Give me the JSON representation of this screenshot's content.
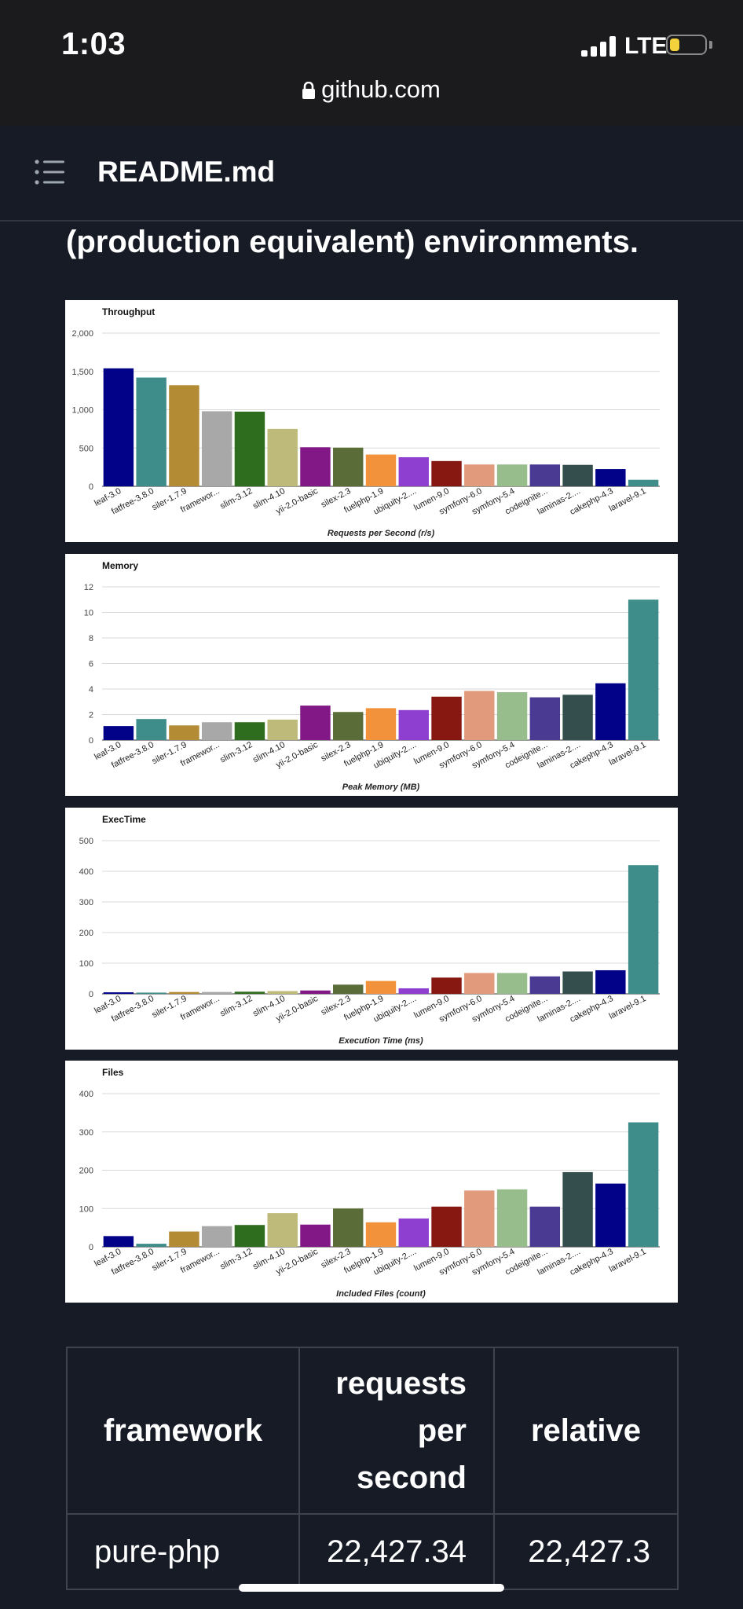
{
  "status_bar": {
    "time": "1:03",
    "network": "LTE",
    "battery_level": 0.28,
    "battery_color": "#f4d23c",
    "url": "github.com"
  },
  "header": {
    "title": "README.md",
    "menu_icon": "list-icon"
  },
  "intro_text": "(production equivalent) environments.",
  "chart_data": [
    {
      "type": "bar",
      "title": "Throughput",
      "xlabel": "Requests per Second (r/s)",
      "ylabel": "",
      "ylim": [
        0,
        2000
      ],
      "yticks": [
        0,
        500,
        1000,
        1500,
        2000
      ],
      "tick_labels": [
        "0",
        "500",
        "1,000",
        "1,500",
        "2,000"
      ],
      "categories": [
        "leaf-3.0",
        "fatfree-3.8.0",
        "siler-1.7.9",
        "framewor...",
        "slim-3.12",
        "slim-4.10",
        "yii-2.0-basic",
        "silex-2.3",
        "fuelphp-1.9",
        "ubiquity-2....",
        "lumen-9.0",
        "symfony-6.0",
        "symfony-5.4",
        "codeignite...",
        "laminas-2....",
        "cakephp-4.3",
        "laravel-9.1"
      ],
      "values": [
        1540,
        1420,
        1320,
        980,
        975,
        750,
        510,
        505,
        415,
        380,
        330,
        285,
        285,
        285,
        280,
        225,
        85
      ]
    },
    {
      "type": "bar",
      "title": "Memory",
      "xlabel": "Peak Memory (MB)",
      "ylabel": "",
      "ylim": [
        0,
        12
      ],
      "yticks": [
        0,
        2,
        4,
        6,
        8,
        10,
        12
      ],
      "tick_labels": [
        "0",
        "2",
        "4",
        "6",
        "8",
        "10",
        "12"
      ],
      "categories": [
        "leaf-3.0",
        "fatfree-3.8.0",
        "siler-1.7.9",
        "framewor...",
        "slim-3.12",
        "slim-4.10",
        "yii-2.0-basic",
        "silex-2.3",
        "fuelphp-1.9",
        "ubiquity-2....",
        "lumen-9.0",
        "symfony-6.0",
        "symfony-5.4",
        "codeignite...",
        "laminas-2....",
        "cakephp-4.3",
        "laravel-9.1"
      ],
      "values": [
        1.1,
        1.65,
        1.15,
        1.4,
        1.4,
        1.6,
        2.7,
        2.2,
        2.5,
        2.35,
        3.4,
        3.85,
        3.75,
        3.35,
        3.55,
        4.45,
        11.0
      ]
    },
    {
      "type": "bar",
      "title": "ExecTime",
      "xlabel": "Execution Time (ms)",
      "ylabel": "",
      "ylim": [
        0,
        500
      ],
      "yticks": [
        0,
        100,
        200,
        300,
        400,
        500
      ],
      "tick_labels": [
        "0",
        "100",
        "200",
        "300",
        "400",
        "500"
      ],
      "categories": [
        "leaf-3.0",
        "fatfree-3.8.0",
        "siler-1.7.9",
        "framewor...",
        "slim-3.12",
        "slim-4.10",
        "yii-2.0-basic",
        "silex-2.3",
        "fuelphp-1.9",
        "ubiquity-2....",
        "lumen-9.0",
        "symfony-6.0",
        "symfony-5.4",
        "codeignite...",
        "laminas-2....",
        "cakephp-4.3",
        "laravel-9.1"
      ],
      "values": [
        5,
        4,
        6,
        6,
        7,
        9,
        11,
        30,
        42,
        18,
        53,
        68,
        68,
        57,
        73,
        77,
        420
      ]
    },
    {
      "type": "bar",
      "title": "Files",
      "xlabel": "Included Files (count)",
      "ylabel": "",
      "ylim": [
        0,
        400
      ],
      "yticks": [
        0,
        100,
        200,
        300,
        400
      ],
      "tick_labels": [
        "0",
        "100",
        "200",
        "300",
        "400"
      ],
      "categories": [
        "leaf-3.0",
        "fatfree-3.8.0",
        "siler-1.7.9",
        "framewor...",
        "slim-3.12",
        "slim-4.10",
        "yii-2.0-basic",
        "silex-2.3",
        "fuelphp-1.9",
        "ubiquity-2....",
        "lumen-9.0",
        "symfony-6.0",
        "symfony-5.4",
        "codeignite...",
        "laminas-2....",
        "cakephp-4.3",
        "laravel-9.1"
      ],
      "values": [
        28,
        8,
        40,
        54,
        57,
        88,
        58,
        100,
        64,
        74,
        105,
        147,
        150,
        105,
        195,
        165,
        325
      ]
    }
  ],
  "bar_colors": [
    "#020289",
    "#3e8d8b",
    "#b48b35",
    "#a8a8a8",
    "#2e6d1d",
    "#bebb7a",
    "#821886",
    "#5a6d39",
    "#f2933b",
    "#8f3fd0",
    "#861711",
    "#e19a7c",
    "#97bd8c",
    "#4b3a91",
    "#344e4d",
    "#020289",
    "#3e8d8b"
  ],
  "table": {
    "headers": [
      {
        "lines": [
          "framework"
        ]
      },
      {
        "lines": [
          "requests",
          "per",
          "second"
        ]
      },
      {
        "lines": [
          "relative"
        ]
      }
    ],
    "rows": [
      {
        "framework": "pure-php",
        "rps": "22,427.34",
        "relative": "22,427.3"
      }
    ]
  }
}
